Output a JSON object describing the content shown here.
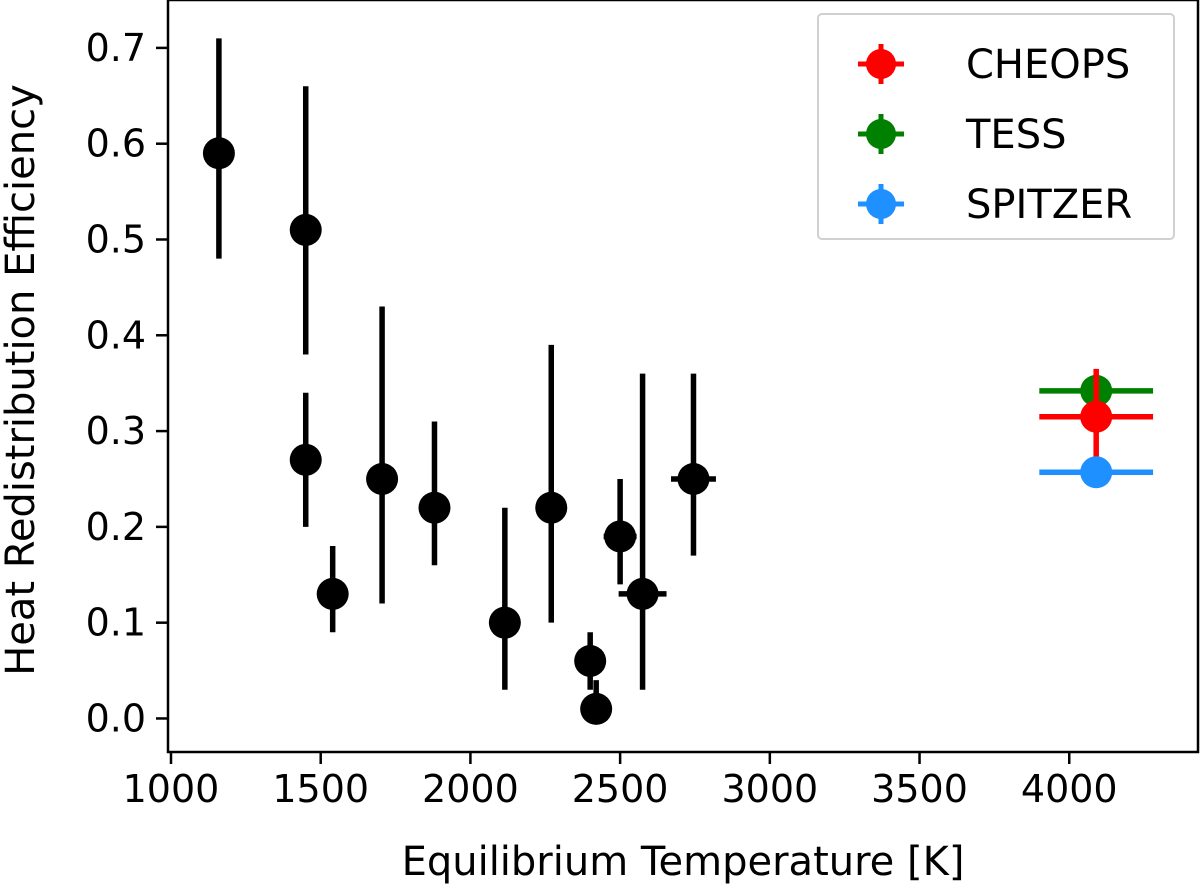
{
  "chart_data": {
    "type": "scatter",
    "xlabel": "Equilibrium Temperature [K]",
    "ylabel": "Heat Redistribution Efficiency",
    "xlim": [
      990,
      4430
    ],
    "ylim": [
      -0.035,
      0.75
    ],
    "xticks": [
      1000,
      1500,
      2000,
      2500,
      3000,
      3500,
      4000
    ],
    "xtick_labels": [
      "1000",
      "1500",
      "2000",
      "2500",
      "3000",
      "3500",
      "4000"
    ],
    "yticks": [
      0.0,
      0.1,
      0.2,
      0.3,
      0.4,
      0.5,
      0.6,
      0.7
    ],
    "ytick_labels": [
      "0.0",
      "0.1",
      "0.2",
      "0.3",
      "0.4",
      "0.5",
      "0.6",
      "0.7"
    ],
    "grid": false,
    "legend_position": "top-right",
    "colors": {
      "literature": "#000000",
      "CHEOPS": "#ff0000",
      "TESS": "#008000",
      "SPITZER": "#1e90ff"
    },
    "series": [
      {
        "key": "literature",
        "points": [
          {
            "x": 1160,
            "y": 0.59,
            "yerr": [
              0.11,
              0.12
            ],
            "xerr": [
              0,
              0
            ]
          },
          {
            "x": 1450,
            "y": 0.51,
            "yerr": [
              0.13,
              0.15
            ],
            "xerr": [
              0,
              0
            ]
          },
          {
            "x": 1450,
            "y": 0.27,
            "yerr": [
              0.07,
              0.07
            ],
            "xerr": [
              0,
              0
            ]
          },
          {
            "x": 1540,
            "y": 0.13,
            "yerr": [
              0.04,
              0.05
            ],
            "xerr": [
              0,
              0
            ]
          },
          {
            "x": 1705,
            "y": 0.25,
            "yerr": [
              0.13,
              0.18
            ],
            "xerr": [
              0,
              0
            ]
          },
          {
            "x": 1880,
            "y": 0.22,
            "yerr": [
              0.06,
              0.09
            ],
            "xerr": [
              0,
              0
            ]
          },
          {
            "x": 2115,
            "y": 0.1,
            "yerr": [
              0.07,
              0.12
            ],
            "xerr": [
              0,
              0
            ]
          },
          {
            "x": 2270,
            "y": 0.22,
            "yerr": [
              0.12,
              0.17
            ],
            "xerr": [
              0,
              0
            ]
          },
          {
            "x": 2400,
            "y": 0.06,
            "yerr": [
              0.03,
              0.03
            ],
            "xerr": [
              25,
              25
            ]
          },
          {
            "x": 2420,
            "y": 0.01,
            "yerr": [
              0.01,
              0.03
            ],
            "xerr": [
              0,
              0
            ]
          },
          {
            "x": 2500,
            "y": 0.19,
            "yerr": [
              0.05,
              0.06
            ],
            "xerr": [
              55,
              55
            ]
          },
          {
            "x": 2575,
            "y": 0.13,
            "yerr": [
              0.1,
              0.23
            ],
            "xerr": [
              80,
              80
            ]
          },
          {
            "x": 2745,
            "y": 0.25,
            "yerr": [
              0.08,
              0.11
            ],
            "xerr": [
              75,
              75
            ]
          }
        ]
      },
      {
        "key": "TESS",
        "name": "TESS",
        "points": [
          {
            "x": 4090,
            "y": 0.342,
            "yerr": [
              0.005,
              0.005
            ],
            "xerr": [
              190,
              190
            ]
          }
        ]
      },
      {
        "key": "CHEOPS",
        "name": "CHEOPS",
        "points": [
          {
            "x": 4090,
            "y": 0.315,
            "yerr": [
              0.05,
              0.05
            ],
            "xerr": [
              190,
              190
            ]
          }
        ]
      },
      {
        "key": "SPITZER",
        "name": "SPITZER",
        "points": [
          {
            "x": 4090,
            "y": 0.257,
            "yerr": [
              0.005,
              0.005
            ],
            "xerr": [
              190,
              190
            ]
          }
        ]
      }
    ],
    "legend": [
      {
        "label": "CHEOPS",
        "color_key": "CHEOPS"
      },
      {
        "label": "TESS",
        "color_key": "TESS"
      },
      {
        "label": "SPITZER",
        "color_key": "SPITZER"
      }
    ]
  }
}
